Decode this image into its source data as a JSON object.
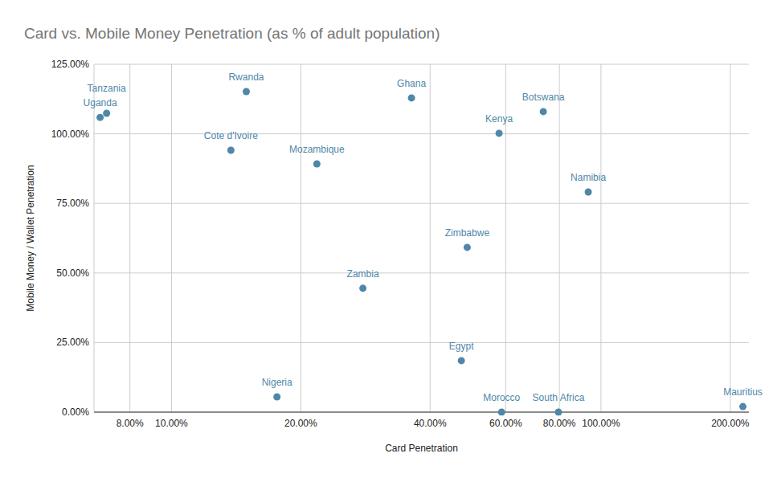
{
  "chart_data": {
    "type": "scatter",
    "title": "Card vs. Mobile Money Penetration (as % of adult population)",
    "x_label": "Card Penetration",
    "y_label": "Mobile Money / Wallet Penetration",
    "labels": [
      "Uganda",
      "Tanzania",
      "Rwanda",
      "Cote d'Ivoire",
      "Mozambique",
      "Ghana",
      "Kenya",
      "Botswana",
      "Namibia",
      "Zimbabwe",
      "Zambia",
      "Egypt",
      "Nigeria",
      "Morocco",
      "South Africa",
      "Mauritius"
    ],
    "x": [
      6.82,
      7.06,
      14.93,
      13.75,
      21.8,
      36.2,
      57.9,
      73.4,
      93.4,
      48.8,
      27.9,
      47.3,
      17.6,
      58.7,
      79.6,
      214
    ],
    "values": [
      105.9,
      107.4,
      115.2,
      94.1,
      89.2,
      112.9,
      100.2,
      108.0,
      79.1,
      59.2,
      44.5,
      18.5,
      5.5,
      0,
      0,
      2.0
    ],
    "color": "#4f87a8",
    "marker": "circle",
    "data_labels": true,
    "log": "x",
    "grid": true,
    "xlim": [
      6.6,
      221
    ],
    "xticks": [
      {
        "value": 8,
        "label": "8.00%"
      },
      {
        "value": 10,
        "label": "10.00%"
      },
      {
        "value": 20,
        "label": "20.00%"
      },
      {
        "value": 40,
        "label": "40.00%"
      },
      {
        "value": 60,
        "label": "60.00%"
      },
      {
        "value": 80,
        "label": "80.00%"
      },
      {
        "value": 100,
        "label": "100.00%"
      },
      {
        "value": 200,
        "label": "200.00%"
      }
    ],
    "ylim": [
      0,
      125
    ],
    "yticks": [
      {
        "value": 0,
        "label": "0.00%"
      },
      {
        "value": 25,
        "label": "25.00%"
      },
      {
        "value": 50,
        "label": "50.00%"
      },
      {
        "value": 75,
        "label": "75.00%"
      },
      {
        "value": 100,
        "label": "100.00%"
      },
      {
        "value": 125,
        "label": "125.00%"
      }
    ]
  }
}
